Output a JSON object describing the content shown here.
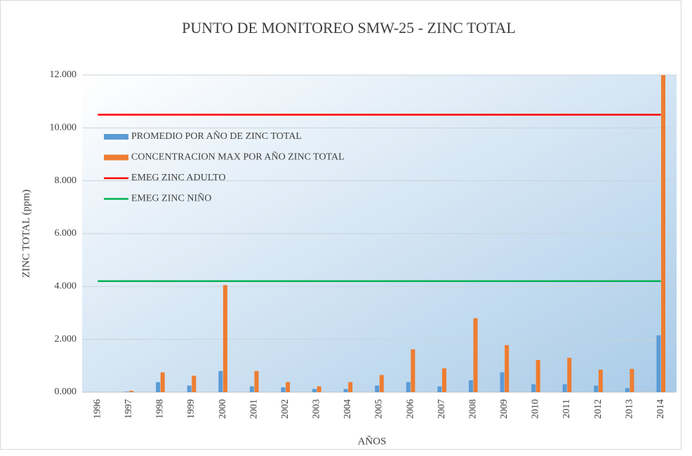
{
  "chart_data": {
    "type": "bar",
    "title": "PUNTO DE MONITOREO SMW-25 - ZINC TOTAL",
    "x_label": "AÑOS",
    "y_label": "ZINC TOTAL (ppm)",
    "categories": [
      "1996",
      "1997",
      "1998",
      "1999",
      "2000",
      "2001",
      "2002",
      "2003",
      "2004",
      "2005",
      "2006",
      "2007",
      "2008",
      "2009",
      "2010",
      "2011",
      "2012",
      "2013",
      "2014"
    ],
    "series": [
      {
        "name": "PROMEDIO POR AÑO DE ZINC TOTAL",
        "kind": "bar",
        "color": "#5b9bd5",
        "values": [
          0,
          0.02,
          0.38,
          0.25,
          0.8,
          0.22,
          0.18,
          0.12,
          0.12,
          0.25,
          0.38,
          0.22,
          0.45,
          0.75,
          0.3,
          0.3,
          0.25,
          0.15,
          2.15
        ]
      },
      {
        "name": "CONCENTRACION MAX POR AÑO ZINC TOTAL",
        "kind": "bar",
        "color": "#ed7d31",
        "values": [
          0,
          0.05,
          0.75,
          0.62,
          4.05,
          0.8,
          0.38,
          0.22,
          0.38,
          0.65,
          1.62,
          0.9,
          2.8,
          1.78,
          1.22,
          1.3,
          0.85,
          0.88,
          12
        ]
      },
      {
        "name": "EMEG ZINC ADULTO",
        "kind": "line",
        "color": "#ff0000",
        "values": [
          10.5,
          10.5,
          10.5,
          10.5,
          10.5,
          10.5,
          10.5,
          10.5,
          10.5,
          10.5,
          10.5,
          10.5,
          10.5,
          10.5,
          10.5,
          10.5,
          10.5,
          10.5,
          10.5
        ]
      },
      {
        "name": "EMEG ZINC NIÑO",
        "kind": "line",
        "color": "#00b050",
        "values": [
          4.2,
          4.2,
          4.2,
          4.2,
          4.2,
          4.2,
          4.2,
          4.2,
          4.2,
          4.2,
          4.2,
          4.2,
          4.2,
          4.2,
          4.2,
          4.2,
          4.2,
          4.2,
          4.2
        ]
      }
    ],
    "ylim": [
      0,
      12
    ],
    "yticks": [
      {
        "value": 0,
        "label": "0.000"
      },
      {
        "value": 2,
        "label": "2.000"
      },
      {
        "value": 4,
        "label": "4.000"
      },
      {
        "value": 6,
        "label": "6.000"
      },
      {
        "value": 8,
        "label": "8.000"
      },
      {
        "value": 10,
        "label": "10.000"
      },
      {
        "value": 12,
        "label": "12.000"
      }
    ],
    "grid": true,
    "legend": "upper left"
  }
}
